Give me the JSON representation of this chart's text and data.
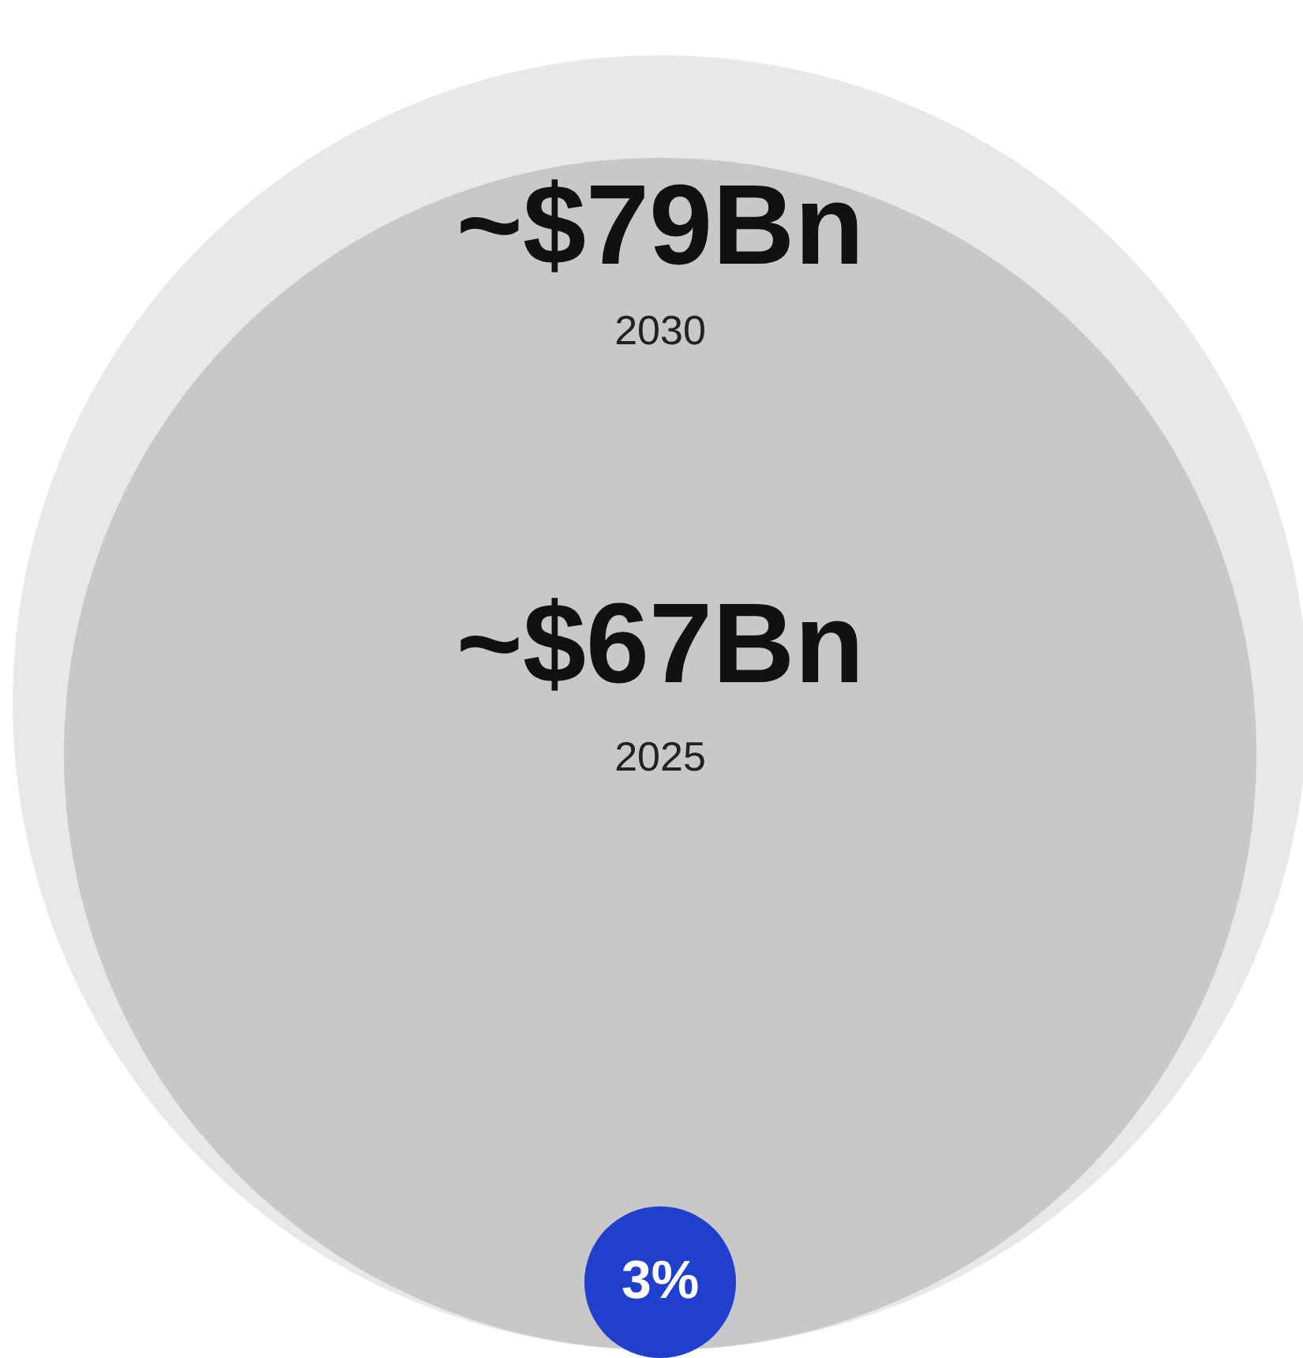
{
  "chart_data": {
    "type": "other",
    "categories": [
      "2030",
      "2025"
    ],
    "values": [
      79,
      67
    ],
    "value_labels": [
      "~$79Bn",
      "~$67Bn"
    ],
    "colors": [
      "#e8e8e8",
      "#c8c8c8"
    ],
    "annotations": [
      "3%"
    ]
  }
}
